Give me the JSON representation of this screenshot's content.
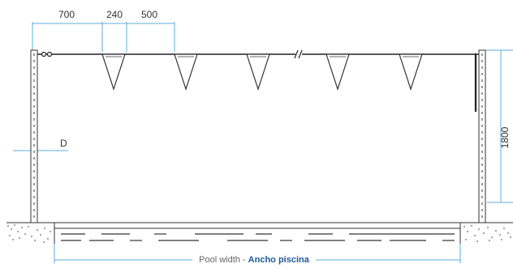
{
  "dimensions": {
    "d700": "700",
    "d240": "240",
    "d500": "500",
    "height": "1800",
    "post_label": "D"
  },
  "caption": {
    "english": "Pool width",
    "separator": " - ",
    "spanish": "Ancho piscina"
  },
  "colors": {
    "dimension_line": "#5aaedc",
    "drawing_line": "#333333",
    "caption_en": "#666666",
    "caption_es": "#1f5a93"
  }
}
